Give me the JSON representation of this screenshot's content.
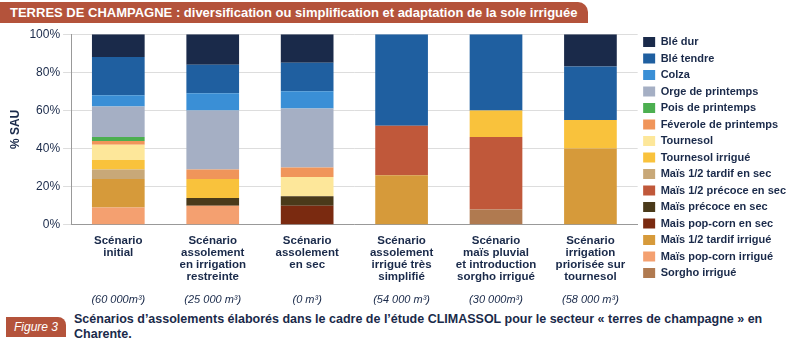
{
  "chart_data": {
    "type": "bar",
    "title": "TERRES DE CHAMPAGNE : diversification ou simplification et adaptation de la sole irriguée",
    "figure_label": "Figure 3",
    "caption": "Scénarios d’assolements élaborés dans le cadre de l’étude CLIMASSOL pour le secteur « terres de champagne » en Charente.",
    "y_label": "% SAU",
    "categories": [
      [
        "Scénario",
        "initial"
      ],
      [
        "Scénario",
        "assolement",
        "en irrigation",
        "restreinte"
      ],
      [
        "Scénario",
        "assolement",
        "en sec"
      ],
      [
        "Scénario",
        "assolement",
        "irrigué très",
        "simplifié"
      ],
      [
        "Scénario",
        "maïs pluvial",
        "et introduction",
        "sorgho irrigué"
      ],
      [
        "Scénario",
        "irrigation",
        "priorisée sur",
        "tournesol"
      ]
    ],
    "sublabels": [
      "(60 000m³)",
      "(25 000 m³)",
      "(0 m³)",
      "(54 000 m³)",
      "(30 000m³)",
      "(58 000 m³)"
    ],
    "stacked": true,
    "grid": true,
    "legend": "right",
    "ylim": [
      0,
      100
    ],
    "yticks": [
      {
        "value": 0,
        "label": "0%"
      },
      {
        "value": 20,
        "label": "20%"
      },
      {
        "value": 40,
        "label": "40%"
      },
      {
        "value": 60,
        "label": "60%"
      },
      {
        "value": 80,
        "label": "80%"
      },
      {
        "value": 100,
        "label": "100%"
      }
    ],
    "series": [
      {
        "name": "Sorgho irrigué",
        "color": "#b07a50",
        "values": [
          0,
          0,
          0,
          0,
          8,
          0
        ]
      },
      {
        "name": "Maïs pop-corn irrigué",
        "color": "#f4a070",
        "values": [
          9,
          10,
          0,
          0,
          0,
          0
        ]
      },
      {
        "name": "Maïs 1/2 tardif irrigué",
        "color": "#d69a3a",
        "values": [
          15,
          0,
          0,
          26,
          0,
          40
        ]
      },
      {
        "name": "Mais pop-corn en sec",
        "color": "#7a2a10",
        "values": [
          0,
          0,
          10,
          0,
          0,
          0
        ]
      },
      {
        "name": "Maïs précoce en sec",
        "color": "#4a3a1a",
        "values": [
          0,
          4,
          5,
          0,
          0,
          0
        ]
      },
      {
        "name": "Maïs 1/2 précoce en sec",
        "color": "#c0583a",
        "values": [
          0,
          0,
          0,
          26,
          38,
          0
        ]
      },
      {
        "name": "Maïs 1/2 tardif en sec",
        "color": "#c8a878",
        "values": [
          5,
          0,
          0,
          0,
          0,
          0
        ]
      },
      {
        "name": "Tournesol irrigué",
        "color": "#f9c23c",
        "values": [
          5,
          10,
          0,
          0,
          14,
          15
        ]
      },
      {
        "name": "Tournesol",
        "color": "#fde79a",
        "values": [
          8,
          0,
          10,
          0,
          0,
          0
        ]
      },
      {
        "name": "Féverole de printemps",
        "color": "#f0955a",
        "values": [
          2,
          5,
          5,
          0,
          0,
          0
        ]
      },
      {
        "name": "Pois de printemps",
        "color": "#4caf50",
        "values": [
          2,
          0,
          0,
          0,
          0,
          0
        ]
      },
      {
        "name": "Orge de printemps",
        "color": "#a5afc4",
        "values": [
          16,
          31,
          31,
          0,
          0,
          0
        ]
      },
      {
        "name": "Colza",
        "color": "#3a8fd6",
        "values": [
          6,
          9,
          9,
          0,
          0,
          0
        ]
      },
      {
        "name": "Blé tendre",
        "color": "#1f5fa0",
        "values": [
          20,
          15,
          15,
          48,
          40,
          28
        ]
      },
      {
        "name": "Blé dur",
        "color": "#1a2a4a",
        "values": [
          12,
          16,
          15,
          0,
          0,
          17
        ]
      }
    ]
  }
}
